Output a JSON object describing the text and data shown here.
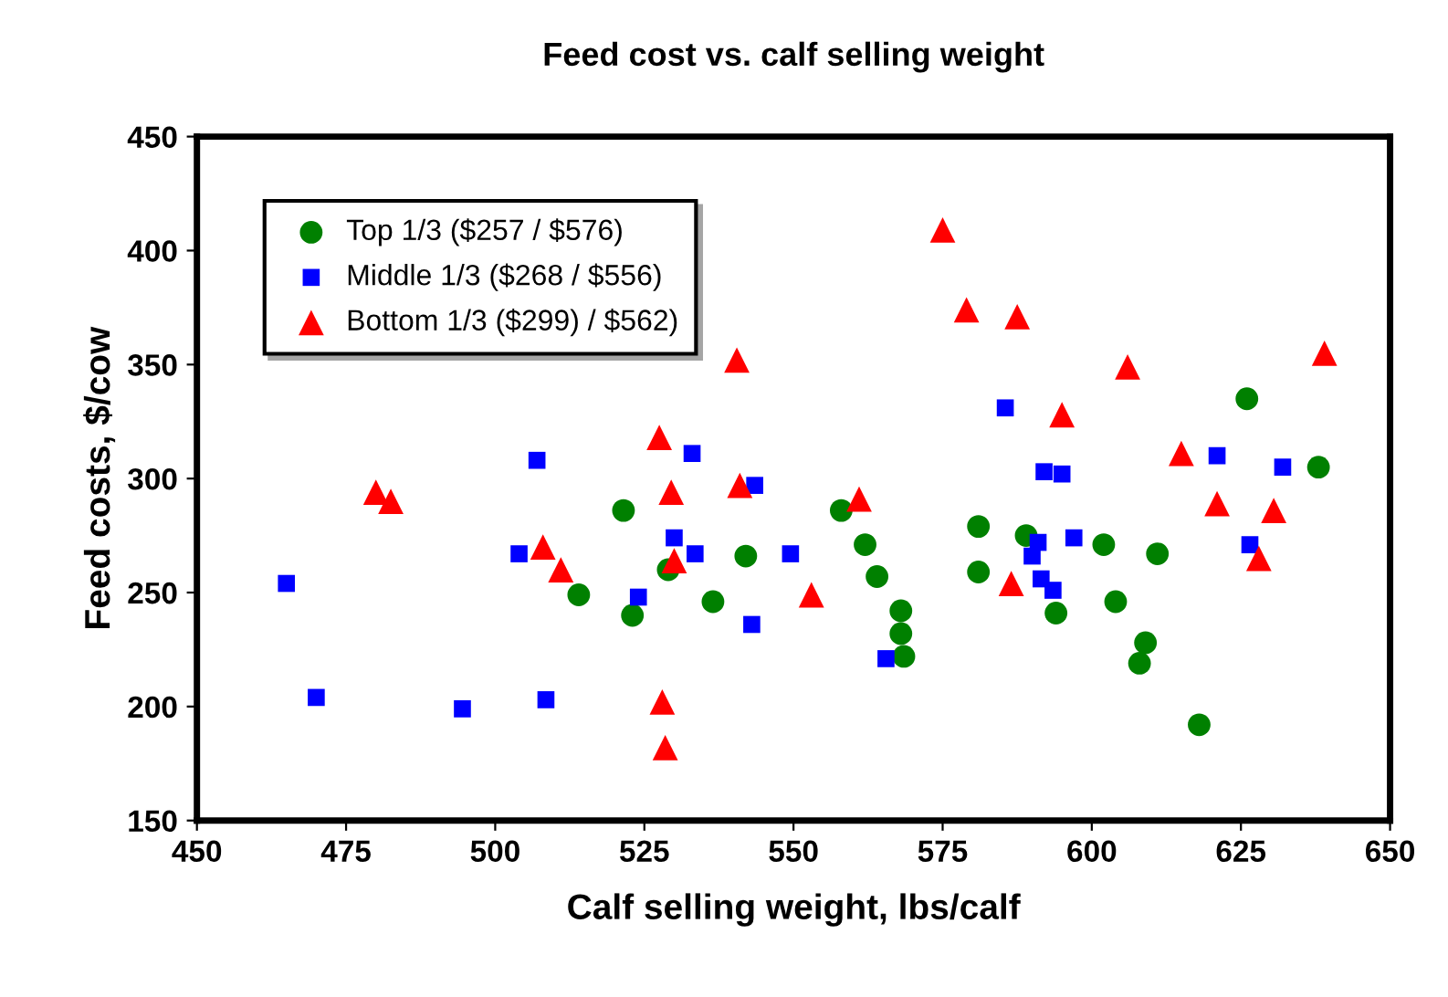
{
  "chart_data": {
    "type": "scatter",
    "title": "Feed cost vs. calf selling weight",
    "xlabel": "Calf selling weight, lbs/calf",
    "ylabel": "Feed costs, $/cow",
    "xlim": [
      450,
      650
    ],
    "xticks": [
      450,
      475,
      500,
      525,
      550,
      575,
      600,
      625,
      650
    ],
    "ylim": [
      150,
      450
    ],
    "yticks": [
      150,
      200,
      250,
      300,
      350,
      400,
      450
    ],
    "grid": false,
    "legend": "top left",
    "series": [
      {
        "name": "Top 1/3 ($257 / $576)",
        "color": "#008000",
        "marker": "circle",
        "x": [
          514,
          521.5,
          523,
          529,
          536.5,
          542,
          558,
          562,
          564,
          568,
          568,
          568.5,
          581,
          581,
          589,
          594,
          602,
          604,
          611,
          609,
          608,
          618,
          626,
          638
        ],
        "values": [
          249,
          286,
          240,
          260,
          246,
          266,
          286,
          271,
          257,
          242,
          232,
          222,
          279,
          259,
          275,
          241,
          271,
          246,
          267,
          228,
          219,
          192,
          335,
          305
        ]
      },
      {
        "name": "Middle 1/3 ($268 / $556)",
        "color": "#0000ff",
        "marker": "square",
        "x": [
          465,
          470,
          494.5,
          507,
          504,
          508.5,
          524,
          533,
          530,
          533.5,
          543.5,
          543,
          549.5,
          565.5,
          585.5,
          592,
          595,
          591,
          590,
          597,
          591.5,
          593.5,
          621,
          632,
          626.5
        ],
        "values": [
          254,
          204,
          199,
          308,
          267,
          203,
          248,
          311,
          274,
          267,
          297,
          236,
          267,
          221,
          331,
          303,
          302,
          272,
          266,
          274,
          256,
          251,
          310,
          305,
          271
        ]
      },
      {
        "name": "Bottom 1/3 ($299) / $562)",
        "color": "#ff0000",
        "marker": "triangle",
        "x": [
          480,
          482.5,
          508,
          511,
          527.5,
          529.5,
          530,
          528,
          528.5,
          540.5,
          541,
          553,
          561,
          575,
          579,
          587.5,
          586.5,
          595,
          606,
          615,
          621,
          630.5,
          628,
          639
        ],
        "values": [
          294,
          290,
          270,
          260,
          318,
          294,
          264,
          202,
          182,
          352,
          297,
          249,
          291,
          409,
          374,
          371,
          254,
          328,
          349,
          311,
          289,
          286,
          265,
          355
        ]
      }
    ]
  }
}
